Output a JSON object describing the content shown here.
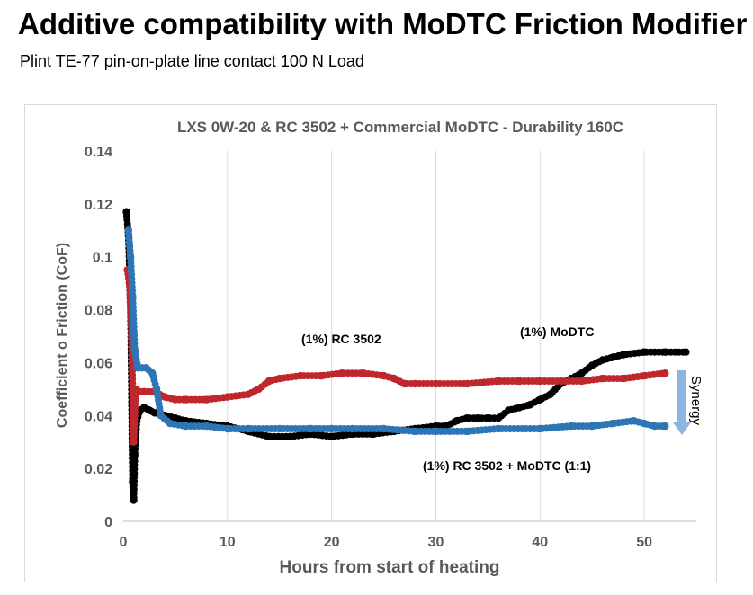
{
  "page": {
    "title": "Additive compatibility with MoDTC Friction Modifier",
    "subtitle": "Plint TE-77 pin-on-plate line contact 100 N Load"
  },
  "chart_data": {
    "type": "scatter",
    "title": "LXS 0W-20 & RC 3502 + Commercial MoDTC -  Durability 160C",
    "xlabel": "Hours from start of heating",
    "ylabel": "Coefficient o Friction (CoF)",
    "xlim": [
      0,
      55
    ],
    "ylim": [
      0,
      0.14
    ],
    "xticks": [
      0,
      10,
      20,
      30,
      40,
      50
    ],
    "yticks": [
      0,
      0.02,
      0.04,
      0.06,
      0.08,
      0.1,
      0.12,
      0.14
    ],
    "ytick_labels": [
      "0",
      "0.02",
      "0.04",
      "0.06",
      "0.08",
      "0.1",
      "0.12",
      "0.14"
    ],
    "grid": "vertical",
    "legend": "none",
    "series": [
      {
        "name": "(1%)  MoDTC",
        "color": "#000000",
        "x": [
          0.3,
          0.5,
          0.7,
          0.9,
          1.0,
          1.1,
          1.3,
          1.6,
          2.0,
          2.5,
          3.0,
          4,
          5,
          6,
          8,
          10,
          12,
          14,
          16,
          18,
          20,
          22,
          24,
          26,
          28,
          30,
          31,
          32,
          33,
          34,
          35,
          36,
          37,
          38,
          39,
          40,
          41,
          42,
          43,
          44,
          45,
          46,
          47,
          48,
          50,
          52,
          54
        ],
        "y": [
          0.117,
          0.108,
          0.085,
          0.015,
          0.008,
          0.025,
          0.038,
          0.042,
          0.043,
          0.042,
          0.041,
          0.04,
          0.039,
          0.038,
          0.037,
          0.036,
          0.034,
          0.032,
          0.032,
          0.033,
          0.032,
          0.033,
          0.033,
          0.034,
          0.035,
          0.036,
          0.036,
          0.038,
          0.039,
          0.039,
          0.039,
          0.039,
          0.042,
          0.043,
          0.044,
          0.046,
          0.048,
          0.052,
          0.054,
          0.056,
          0.059,
          0.061,
          0.062,
          0.063,
          0.064,
          0.064,
          0.064
        ]
      },
      {
        "name": "(1%)  RC 3502",
        "color": "#c0272d",
        "x": [
          0.4,
          0.6,
          0.8,
          1.0,
          1.2,
          1.5,
          2.0,
          3.0,
          4,
          5,
          6,
          8,
          10,
          12,
          13,
          14,
          15,
          17,
          19,
          21,
          23,
          25,
          26,
          27,
          28,
          30,
          33,
          36,
          38,
          40,
          42,
          44,
          46,
          48,
          50,
          52
        ],
        "y": [
          0.095,
          0.09,
          0.07,
          0.03,
          0.05,
          0.049,
          0.049,
          0.049,
          0.047,
          0.046,
          0.046,
          0.046,
          0.047,
          0.048,
          0.05,
          0.053,
          0.054,
          0.055,
          0.055,
          0.056,
          0.056,
          0.055,
          0.054,
          0.052,
          0.052,
          0.052,
          0.052,
          0.053,
          0.053,
          0.053,
          0.053,
          0.053,
          0.054,
          0.054,
          0.055,
          0.056
        ]
      },
      {
        "name": "(1%)   RC 3502 + MoDTC (1:1)",
        "color": "#2e75b6",
        "x": [
          0.5,
          0.7,
          0.9,
          1.1,
          1.4,
          1.8,
          2.2,
          2.8,
          3.2,
          3.6,
          4.5,
          6,
          8,
          10,
          12,
          15,
          18,
          20,
          22,
          25,
          28,
          30,
          33,
          36,
          40,
          43,
          45,
          47,
          49,
          50,
          51,
          52
        ],
        "y": [
          0.11,
          0.1,
          0.085,
          0.065,
          0.058,
          0.058,
          0.058,
          0.056,
          0.05,
          0.04,
          0.037,
          0.036,
          0.036,
          0.035,
          0.035,
          0.035,
          0.035,
          0.035,
          0.035,
          0.035,
          0.034,
          0.034,
          0.034,
          0.035,
          0.035,
          0.036,
          0.036,
          0.037,
          0.038,
          0.037,
          0.036,
          0.036
        ]
      }
    ],
    "annotations": {
      "rc": "(1%)  RC 3502",
      "modtc": "(1%)  MoDTC",
      "combo": "(1%)   RC 3502 + MoDTC (1:1)",
      "synergy": "Synergy"
    },
    "colors": {
      "plot_text": "#595959",
      "grid": "#d9d9d9",
      "synergy_arrow": "#8db4e2"
    }
  }
}
